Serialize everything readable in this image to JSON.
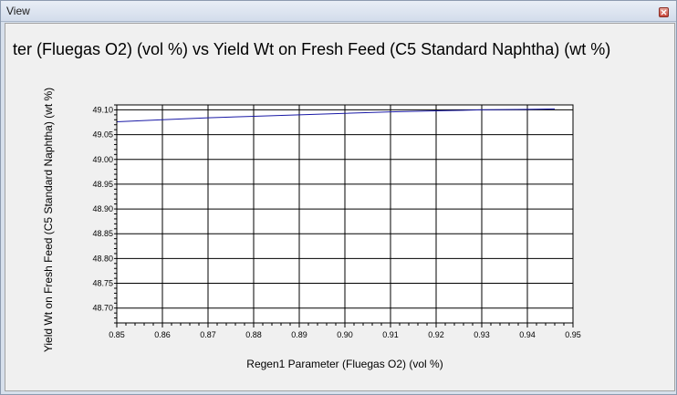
{
  "window": {
    "title": "View"
  },
  "chart_data": {
    "type": "line",
    "title": "ter (Fluegas O2) (vol %) vs Yield Wt on Fresh Feed (C5 Standard Naphtha) (wt %)",
    "xlabel": "Regen1 Parameter (Fluegas O2) (vol %)",
    "ylabel": "Yield Wt on Fresh Feed (C5 Standard Naphtha) (wt %)",
    "xlim": [
      0.85,
      0.95
    ],
    "ylim": [
      48.67,
      49.11
    ],
    "x_ticks": [
      "0.85",
      "0.86",
      "0.87",
      "0.88",
      "0.89",
      "0.90",
      "0.91",
      "0.92",
      "0.93",
      "0.94",
      "0.95"
    ],
    "y_ticks": [
      "49.10",
      "49.05",
      "49.00",
      "48.95",
      "48.90",
      "48.85",
      "48.80",
      "48.75",
      "48.70"
    ],
    "grid": true,
    "line_color": "#1a1aa6",
    "series": [
      {
        "x": [
          0.85,
          0.86,
          0.87,
          0.88,
          0.89,
          0.9,
          0.91,
          0.92,
          0.93,
          0.94,
          0.946
        ],
        "y": [
          49.076,
          49.08,
          49.084,
          49.087,
          49.09,
          49.093,
          49.096,
          49.098,
          49.1,
          49.101,
          49.102
        ]
      }
    ]
  }
}
